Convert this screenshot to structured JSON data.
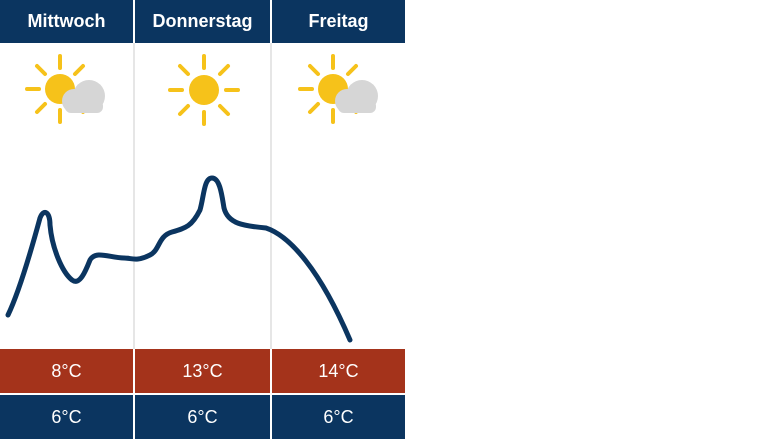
{
  "days": [
    {
      "name": "Mittwoch",
      "icon": "sun-cloud-icon",
      "high": "8°C",
      "low": "6°C"
    },
    {
      "name": "Donnerstag",
      "icon": "sun-icon",
      "high": "13°C",
      "low": "6°C"
    },
    {
      "name": "Freitag",
      "icon": "sun-cloud-icon",
      "high": "14°C",
      "low": "6°C"
    }
  ],
  "colors": {
    "header_bg": "#0b3560",
    "high_bg": "#a4331b",
    "low_bg": "#0b3560",
    "curve": "#0b3560",
    "sun": "#f6c21a",
    "cloud": "#d6d6d6"
  }
}
